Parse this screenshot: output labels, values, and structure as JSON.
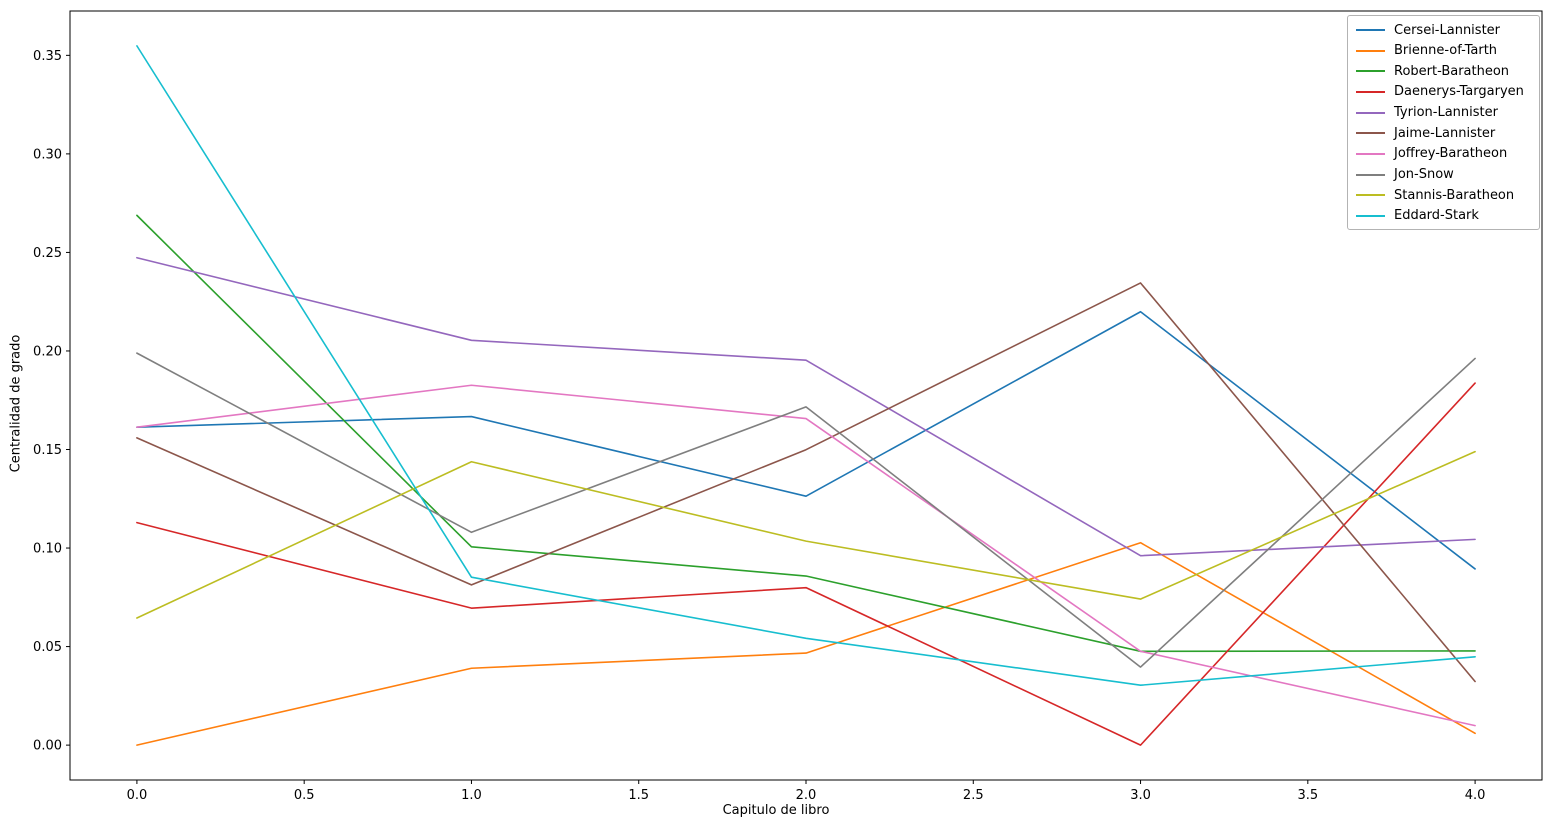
{
  "figure": {
    "background": "#ffffff",
    "axes_border_color": "#000000",
    "legend_border_color": "#b3b3b3"
  },
  "chart_data": {
    "type": "line",
    "title": "",
    "xlabel": "Capitulo de libro",
    "ylabel": "Centralidad de grado",
    "grid": false,
    "legend_position": "upper right",
    "x": [
      0,
      1,
      2,
      3,
      4
    ],
    "xlim": [
      -0.2,
      4.2
    ],
    "ylim": [
      -0.0177,
      0.3725
    ],
    "xticks": [
      0.0,
      0.5,
      1.0,
      1.5,
      2.0,
      2.5,
      3.0,
      3.5,
      4.0
    ],
    "xtick_labels": [
      "0.0",
      "0.5",
      "1.0",
      "1.5",
      "2.0",
      "2.5",
      "3.0",
      "3.5",
      "4.0"
    ],
    "yticks": [
      0.0,
      0.05,
      0.1,
      0.15,
      0.2,
      0.25,
      0.3,
      0.35
    ],
    "ytick_labels": [
      "0.00",
      "0.05",
      "0.10",
      "0.15",
      "0.20",
      "0.25",
      "0.30",
      "0.35"
    ],
    "series": [
      {
        "name": "Cersei-Lannister",
        "color": "#1f77b4",
        "values": [
          0.1613,
          0.1667,
          0.1263,
          0.2199,
          0.0894
        ]
      },
      {
        "name": "Brienne-of-Tarth",
        "color": "#ff7f0e",
        "values": [
          0.0,
          0.039,
          0.0467,
          0.1027,
          0.006
        ]
      },
      {
        "name": "Robert-Baratheon",
        "color": "#2ca02c",
        "values": [
          0.2688,
          0.1006,
          0.0858,
          0.0476,
          0.0478
        ]
      },
      {
        "name": "Daenerys-Targaryen",
        "color": "#d62728",
        "values": [
          0.1129,
          0.0695,
          0.0799,
          0.0,
          0.1837
        ]
      },
      {
        "name": "Tyrion-Lannister",
        "color": "#9467bd",
        "values": [
          0.2473,
          0.2054,
          0.1953,
          0.0961,
          0.1044
        ]
      },
      {
        "name": "Jaime-Lannister",
        "color": "#8c564b",
        "values": [
          0.1559,
          0.0813,
          0.1499,
          0.2345,
          0.0323
        ]
      },
      {
        "name": "Joffrey-Baratheon",
        "color": "#e377c2",
        "values": [
          0.1613,
          0.1826,
          0.1657,
          0.0476,
          0.0099
        ]
      },
      {
        "name": "Jon-Snow",
        "color": "#7f7f7f",
        "values": [
          0.1989,
          0.108,
          0.1716,
          0.0396,
          0.1962
        ]
      },
      {
        "name": "Stannis-Baratheon",
        "color": "#bcbd22",
        "values": [
          0.0645,
          0.1438,
          0.1035,
          0.0741,
          0.1489
        ]
      },
      {
        "name": "Eddard-Stark",
        "color": "#17becf",
        "values": [
          0.3548,
          0.0852,
          0.0542,
          0.0304,
          0.0448
        ]
      }
    ]
  }
}
